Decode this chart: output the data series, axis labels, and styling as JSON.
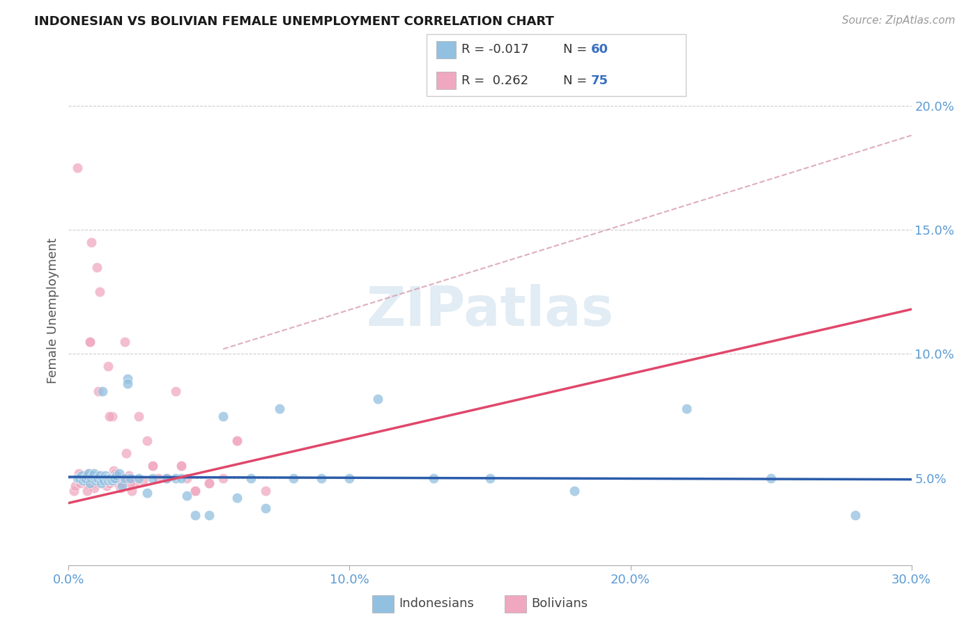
{
  "title": "INDONESIAN VS BOLIVIAN FEMALE UNEMPLOYMENT CORRELATION CHART",
  "source": "Source: ZipAtlas.com",
  "xlim": [
    0.0,
    30.0
  ],
  "ylim": [
    1.5,
    22.0
  ],
  "ylabel": "Female Unemployment",
  "xtick_vals": [
    0.0,
    10.0,
    20.0,
    30.0
  ],
  "ytick_vals": [
    5.0,
    10.0,
    15.0,
    20.0
  ],
  "legend_label1": "Indonesians",
  "legend_label2": "Bolivians",
  "R1": "-0.017",
  "N1": "60",
  "R2": "0.262",
  "N2": "75",
  "color_blue": "#92c0e0",
  "color_pink": "#f0a8c0",
  "color_blue_line": "#2a5caa",
  "color_pink_line": "#e0476a",
  "color_dashed": "#d8a0b0",
  "watermark_text": "ZIPatlas",
  "indonesian_x": [
    0.3,
    0.35,
    0.4,
    0.45,
    0.5,
    0.55,
    0.6,
    0.65,
    0.7,
    0.75,
    0.8,
    0.85,
    0.9,
    0.95,
    1.0,
    1.05,
    1.1,
    1.15,
    1.2,
    1.25,
    1.3,
    1.35,
    1.4,
    1.45,
    1.5,
    1.55,
    1.6,
    1.65,
    1.7,
    1.8,
    1.9,
    2.0,
    2.1,
    2.2,
    2.5,
    2.8,
    3.0,
    3.5,
    3.8,
    4.0,
    4.2,
    4.5,
    5.0,
    5.5,
    6.0,
    6.5,
    7.0,
    7.5,
    8.0,
    9.0,
    10.0,
    11.0,
    13.0,
    15.0,
    18.0,
    22.0,
    25.0,
    28.0,
    1.2,
    2.1
  ],
  "indonesian_y": [
    5.0,
    5.0,
    5.0,
    5.1,
    4.9,
    5.0,
    5.0,
    5.1,
    5.2,
    4.8,
    5.0,
    5.1,
    5.2,
    4.9,
    5.0,
    5.0,
    5.1,
    4.8,
    5.0,
    4.9,
    5.1,
    5.0,
    4.9,
    5.0,
    5.0,
    4.9,
    5.0,
    5.0,
    5.1,
    5.2,
    4.7,
    5.0,
    9.0,
    5.0,
    5.0,
    4.4,
    5.0,
    5.0,
    5.0,
    5.0,
    4.3,
    3.5,
    3.5,
    7.5,
    4.2,
    5.0,
    3.8,
    7.8,
    5.0,
    5.0,
    5.0,
    8.2,
    5.0,
    5.0,
    4.5,
    7.8,
    5.0,
    3.5,
    8.5,
    8.8
  ],
  "bolivian_x": [
    0.2,
    0.25,
    0.3,
    0.35,
    0.4,
    0.45,
    0.5,
    0.55,
    0.6,
    0.65,
    0.7,
    0.75,
    0.8,
    0.85,
    0.9,
    0.95,
    1.0,
    1.05,
    1.1,
    1.15,
    1.2,
    1.25,
    1.3,
    1.35,
    1.4,
    1.45,
    1.5,
    1.55,
    1.6,
    1.65,
    1.7,
    1.75,
    1.8,
    1.85,
    1.9,
    1.95,
    2.0,
    2.05,
    2.1,
    2.15,
    2.2,
    2.25,
    2.35,
    2.5,
    2.65,
    2.8,
    3.0,
    3.2,
    3.5,
    3.8,
    4.0,
    4.2,
    4.5,
    5.0,
    5.5,
    6.0,
    7.0,
    1.45,
    0.8,
    0.9,
    1.0,
    1.1,
    0.75,
    1.5,
    2.0,
    2.2,
    3.0,
    3.5,
    4.0,
    4.5,
    5.0,
    6.0,
    0.65,
    1.3,
    1.7
  ],
  "bolivian_y": [
    4.5,
    4.7,
    17.5,
    5.2,
    4.8,
    5.0,
    5.1,
    4.9,
    5.0,
    4.8,
    5.2,
    10.5,
    5.0,
    4.8,
    4.6,
    5.0,
    13.5,
    8.5,
    12.5,
    5.1,
    5.0,
    4.9,
    5.0,
    4.7,
    9.5,
    4.8,
    4.9,
    7.5,
    5.3,
    5.2,
    5.0,
    4.8,
    5.0,
    4.6,
    4.8,
    5.0,
    10.5,
    6.0,
    5.0,
    5.1,
    5.0,
    4.5,
    4.8,
    7.5,
    4.9,
    6.5,
    5.5,
    5.0,
    5.0,
    8.5,
    5.5,
    5.0,
    4.5,
    4.8,
    5.0,
    6.5,
    4.5,
    7.5,
    14.5,
    5.0,
    5.0,
    5.0,
    10.5,
    5.0,
    5.0,
    4.8,
    5.5,
    5.0,
    5.5,
    4.5,
    4.8,
    6.5,
    4.5,
    5.0,
    5.0
  ],
  "blue_reg_y0": 5.05,
  "blue_reg_y1": 4.95,
  "pink_reg_y0": 4.0,
  "pink_reg_y1": 11.8,
  "dashed_x0": 5.5,
  "dashed_y0": 10.2,
  "dashed_x1": 30.0,
  "dashed_y1": 18.8
}
